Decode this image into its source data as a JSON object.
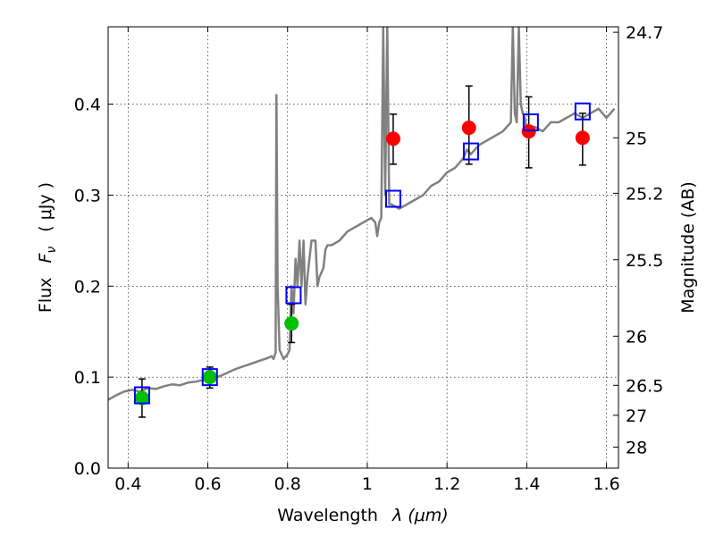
{
  "chart_data": {
    "type": "scatter",
    "xlabel_text": "Wavelength",
    "xlabel_math": "λ (μm)",
    "ylabel_text": "Flux",
    "ylabel_math": "F",
    "ylabel_sub": "ν",
    "ylabel_unit": "( μJy )",
    "y2label": "Magnitude (AB)",
    "xlim": [
      0.35,
      1.63
    ],
    "ylim": [
      0.0,
      0.485
    ],
    "grid": true,
    "x_ticks": [
      0.4,
      0.6,
      0.8,
      1.0,
      1.2,
      1.4,
      1.6
    ],
    "x_tick_labels": [
      "0.4",
      "0.6",
      "0.8",
      "1",
      "1.2",
      "1.4",
      "1.6"
    ],
    "y_ticks": [
      0.0,
      0.1,
      0.2,
      0.3,
      0.4
    ],
    "y_tick_labels": [
      "0.0",
      "0.1",
      "0.2",
      "0.3",
      "0.4"
    ],
    "y2_ticks": [
      {
        "label": "24.7",
        "flux": 0.479
      },
      {
        "label": "25",
        "flux": 0.363
      },
      {
        "label": "25.2",
        "flux": 0.302
      },
      {
        "label": "25.5",
        "flux": 0.229
      },
      {
        "label": "26",
        "flux": 0.145
      },
      {
        "label": "26.5",
        "flux": 0.091
      },
      {
        "label": "27",
        "flux": 0.058
      },
      {
        "label": "28",
        "flux": 0.023
      }
    ],
    "series": [
      {
        "name": "model spectrum",
        "kind": "line",
        "color": "#808080",
        "x": [
          0.35,
          0.37,
          0.39,
          0.41,
          0.43,
          0.45,
          0.47,
          0.49,
          0.51,
          0.53,
          0.55,
          0.57,
          0.59,
          0.61,
          0.63,
          0.65,
          0.67,
          0.69,
          0.71,
          0.73,
          0.75,
          0.76,
          0.765,
          0.77,
          0.772,
          0.775,
          0.78,
          0.79,
          0.8,
          0.805,
          0.81,
          0.815,
          0.82,
          0.825,
          0.83,
          0.835,
          0.84,
          0.845,
          0.85,
          0.86,
          0.87,
          0.875,
          0.88,
          0.89,
          0.895,
          0.9,
          0.91,
          0.93,
          0.95,
          0.97,
          0.99,
          1.01,
          1.02,
          1.025,
          1.03,
          1.035,
          1.04,
          1.045,
          1.05,
          1.055,
          1.06,
          1.08,
          1.1,
          1.12,
          1.14,
          1.16,
          1.18,
          1.2,
          1.22,
          1.24,
          1.25,
          1.26,
          1.28,
          1.3,
          1.32,
          1.34,
          1.35,
          1.36,
          1.365,
          1.37,
          1.375,
          1.38,
          1.385,
          1.39,
          1.395,
          1.4,
          1.42,
          1.44,
          1.46,
          1.48,
          1.5,
          1.52,
          1.54,
          1.56,
          1.58,
          1.6,
          1.62
        ],
        "values": [
          0.075,
          0.08,
          0.084,
          0.086,
          0.084,
          0.088,
          0.087,
          0.09,
          0.092,
          0.091,
          0.094,
          0.095,
          0.097,
          0.099,
          0.101,
          0.105,
          0.109,
          0.112,
          0.115,
          0.118,
          0.121,
          0.123,
          0.12,
          0.127,
          0.41,
          0.2,
          0.13,
          0.12,
          0.125,
          0.13,
          0.2,
          0.17,
          0.23,
          0.2,
          0.25,
          0.2,
          0.25,
          0.18,
          0.21,
          0.25,
          0.25,
          0.2,
          0.21,
          0.22,
          0.24,
          0.245,
          0.245,
          0.25,
          0.26,
          0.265,
          0.27,
          0.275,
          0.27,
          0.255,
          0.27,
          0.275,
          0.485,
          0.3,
          0.485,
          0.29,
          0.29,
          0.285,
          0.29,
          0.295,
          0.3,
          0.31,
          0.315,
          0.325,
          0.33,
          0.34,
          0.35,
          0.345,
          0.355,
          0.36,
          0.365,
          0.37,
          0.375,
          0.38,
          0.485,
          0.39,
          0.38,
          0.485,
          0.4,
          0.39,
          0.385,
          0.37,
          0.375,
          0.37,
          0.38,
          0.38,
          0.385,
          0.39,
          0.385,
          0.39,
          0.395,
          0.385,
          0.395
        ]
      },
      {
        "name": "photometry (red)",
        "kind": "points",
        "color": "#ff0000",
        "x": [
          1.065,
          1.255,
          1.405,
          1.54
        ],
        "values": [
          0.362,
          0.374,
          0.37,
          0.363
        ],
        "yerr_low": [
          0.028,
          0.04,
          0.04,
          0.03
        ],
        "yerr_high": [
          0.027,
          0.046,
          0.038,
          0.027
        ]
      },
      {
        "name": "photometry (green)",
        "kind": "points",
        "color": "#00c000",
        "x": [
          0.435,
          0.605,
          0.81
        ],
        "values": [
          0.077,
          0.1,
          0.159
        ],
        "yerr_low": [
          0.021,
          0.012,
          0.021
        ],
        "yerr_high": [
          0.021,
          0.011,
          0.021
        ]
      },
      {
        "name": "model photometry",
        "kind": "squares",
        "color": "#0000ff",
        "x": [
          0.435,
          0.605,
          0.815,
          1.065,
          1.26,
          1.41,
          1.54
        ],
        "values": [
          0.08,
          0.1,
          0.19,
          0.296,
          0.348,
          0.38,
          0.392
        ]
      }
    ]
  }
}
